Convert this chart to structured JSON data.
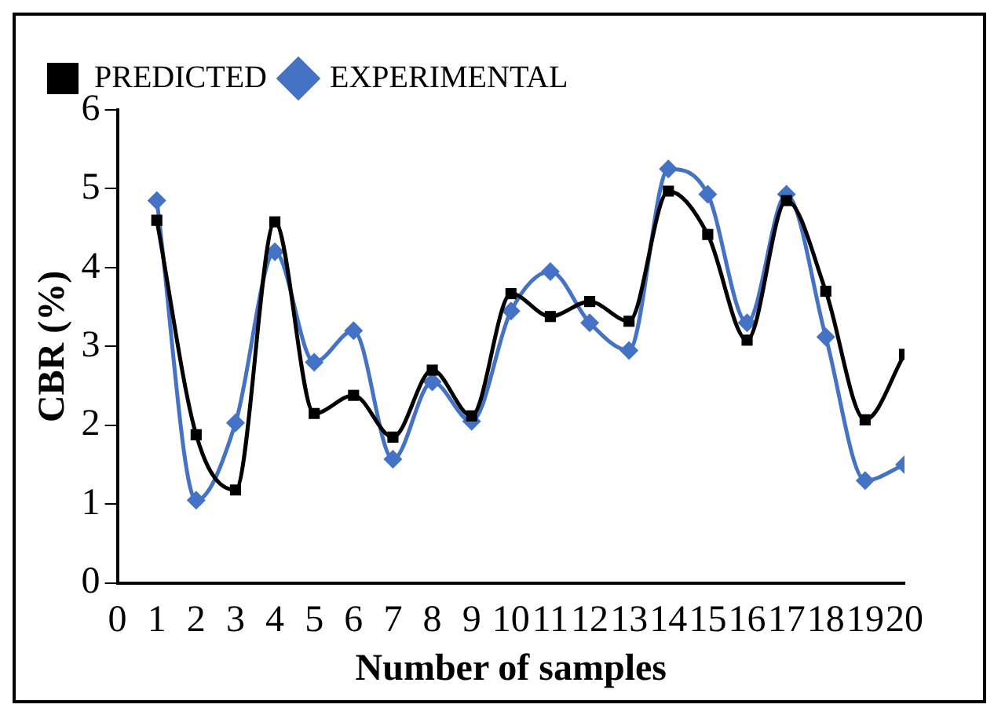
{
  "chart_data": {
    "type": "line",
    "xlabel": "Number of samples",
    "ylabel": "CBR (%)",
    "xlim": [
      0,
      20
    ],
    "xticks": [
      0,
      1,
      2,
      3,
      4,
      5,
      6,
      7,
      8,
      9,
      10,
      11,
      12,
      13,
      14,
      15,
      16,
      17,
      18,
      19,
      20
    ],
    "ylim": [
      0,
      6
    ],
    "yticks": [
      0,
      1,
      2,
      3,
      4,
      5,
      6
    ],
    "grid": false,
    "legend": "top left",
    "x": [
      1,
      2,
      3,
      4,
      5,
      6,
      7,
      8,
      9,
      10,
      11,
      12,
      13,
      14,
      15,
      16,
      17,
      18,
      19,
      20
    ],
    "series": [
      {
        "name": "EXPERIMENTAL",
        "color": "#4472c4",
        "marker": "diamond",
        "values": [
          4.85,
          1.05,
          2.03,
          4.2,
          2.8,
          3.2,
          1.57,
          2.55,
          2.05,
          3.45,
          3.95,
          3.3,
          2.95,
          5.25,
          4.93,
          3.3,
          4.93,
          3.12,
          1.3,
          1.5
        ]
      },
      {
        "name": "PREDICTED",
        "color": "#000000",
        "marker": "square",
        "values": [
          4.6,
          1.88,
          1.18,
          4.58,
          2.15,
          2.38,
          1.85,
          2.7,
          2.12,
          3.67,
          3.38,
          3.57,
          3.32,
          4.97,
          4.42,
          3.08,
          4.85,
          3.7,
          2.07,
          2.9
        ]
      }
    ]
  }
}
